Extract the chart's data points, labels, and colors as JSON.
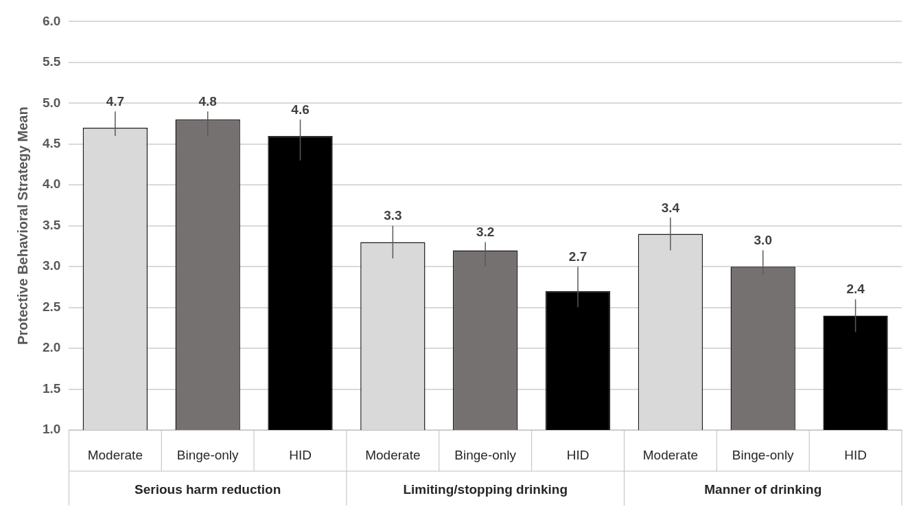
{
  "chart_data": {
    "type": "bar",
    "ylabel": "Protective Behavioral Strategy Mean",
    "categories": [
      "Serious harm reduction",
      "Limiting/stopping drinking",
      "Manner of drinking"
    ],
    "series": [
      {
        "name": "Moderate",
        "color": "#d9d9d9",
        "values": [
          4.7,
          3.3,
          3.4
        ],
        "errors": [
          [
            4.6,
            4.9
          ],
          [
            3.1,
            3.5
          ],
          [
            3.2,
            3.6
          ]
        ],
        "value_labels": [
          "4.7",
          "3.3",
          "3.4"
        ]
      },
      {
        "name": "Binge-only",
        "color": "#767171",
        "values": [
          4.8,
          3.2,
          3.0
        ],
        "errors": [
          [
            4.6,
            4.9
          ],
          [
            3.0,
            3.3
          ],
          [
            2.9,
            3.2
          ]
        ],
        "value_labels": [
          "4.8",
          "3.2",
          "3.0"
        ]
      },
      {
        "name": "HID",
        "color": "#000000",
        "values": [
          4.6,
          2.7,
          2.4
        ],
        "errors": [
          [
            4.3,
            4.8
          ],
          [
            2.5,
            3.0
          ],
          [
            2.2,
            2.6
          ]
        ],
        "value_labels": [
          "4.6",
          "2.7",
          "2.4"
        ]
      }
    ],
    "ylim": [
      1,
      6
    ],
    "yticks": [
      {
        "value": 1,
        "label": "1.0"
      },
      {
        "value": 1.5,
        "label": "1.5"
      },
      {
        "value": 2,
        "label": "2.0"
      },
      {
        "value": 2.5,
        "label": "2.5"
      },
      {
        "value": 3,
        "label": "3.0"
      },
      {
        "value": 3.5,
        "label": "3.5"
      },
      {
        "value": 4,
        "label": "4.0"
      },
      {
        "value": 4.5,
        "label": "4.5"
      },
      {
        "value": 5,
        "label": "5.0"
      },
      {
        "value": 5.5,
        "label": "5.5"
      },
      {
        "value": 6,
        "label": "6.0"
      }
    ],
    "grid": "y",
    "legend": false
  }
}
